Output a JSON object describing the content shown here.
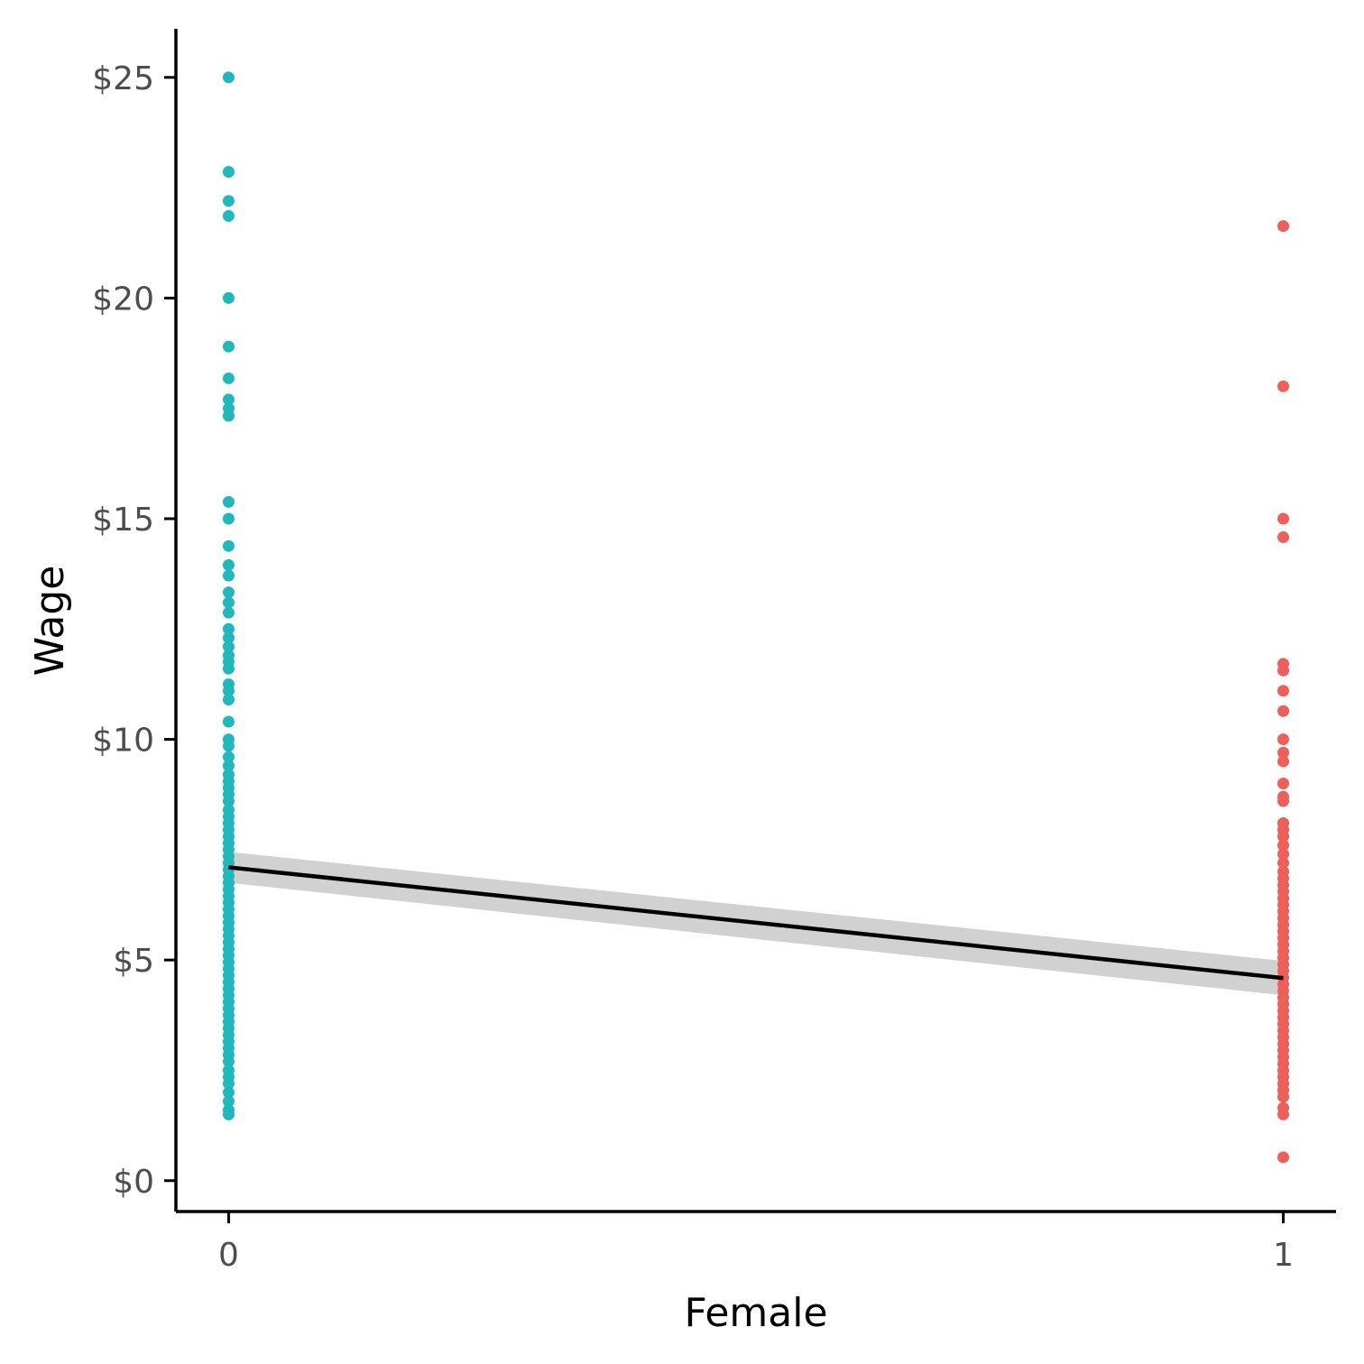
{
  "chart_data": {
    "type": "scatter",
    "title": "",
    "xlabel": "Female",
    "ylabel": "Wage",
    "xlim": [
      -0.05,
      1.05
    ],
    "ylim": [
      -0.7,
      26.1
    ],
    "x_ticks": [
      {
        "value": 0,
        "label": "0"
      },
      {
        "value": 1,
        "label": "1"
      }
    ],
    "y_ticks": [
      {
        "value": 0,
        "label": "$0"
      },
      {
        "value": 5,
        "label": "$5"
      },
      {
        "value": 10,
        "label": "$10"
      },
      {
        "value": 15,
        "label": "$15"
      },
      {
        "value": 20,
        "label": "$20"
      },
      {
        "value": 25,
        "label": "$25"
      }
    ],
    "grid": false,
    "legend": "none",
    "colors": {
      "group0": "#1fb8bc",
      "group1": "#ef5f5a",
      "fit": "#000000",
      "band": "#cccccc"
    },
    "series": [
      {
        "x": 0,
        "values": [
          25.0,
          22.86,
          22.2,
          21.86,
          20.0,
          18.9,
          18.18,
          17.7,
          17.5,
          17.33,
          15.38,
          15.0,
          14.38,
          13.95,
          13.71,
          13.33,
          13.1,
          12.87,
          12.5,
          12.3,
          12.1,
          11.9,
          11.76,
          11.6,
          11.25,
          11.1,
          10.9,
          10.4,
          10.0,
          9.85,
          9.6,
          9.4,
          9.2,
          9.05,
          8.9,
          8.75,
          8.6,
          8.4,
          8.25,
          8.1,
          7.95,
          7.8,
          7.65,
          7.5,
          7.35,
          7.2,
          7.05,
          6.9,
          6.75,
          6.6,
          6.45,
          6.3,
          6.15,
          6.0,
          5.85,
          5.7,
          5.55,
          5.4,
          5.25,
          5.1,
          4.95,
          4.8,
          4.65,
          4.5,
          4.35,
          4.2,
          4.05,
          3.9,
          3.75,
          3.6,
          3.45,
          3.3,
          3.15,
          3.0,
          2.85,
          2.7,
          2.5,
          2.35,
          2.2,
          2.0,
          1.8,
          1.6,
          1.5
        ]
      },
      {
        "x": 1,
        "values": [
          21.63,
          18.0,
          15.0,
          14.58,
          11.71,
          11.56,
          11.1,
          10.64,
          10.0,
          9.7,
          9.5,
          9.0,
          8.7,
          8.6,
          8.1,
          7.95,
          7.8,
          7.6,
          7.4,
          7.2,
          7.0,
          6.85,
          6.7,
          6.55,
          6.4,
          6.25,
          6.1,
          5.95,
          5.8,
          5.65,
          5.5,
          5.35,
          5.2,
          5.05,
          4.9,
          4.75,
          4.6,
          4.45,
          4.3,
          4.15,
          4.0,
          3.85,
          3.7,
          3.55,
          3.4,
          3.25,
          3.1,
          2.95,
          2.8,
          2.65,
          2.5,
          2.35,
          2.2,
          2.05,
          1.9,
          1.65,
          1.5,
          0.53
        ]
      }
    ],
    "fit": {
      "x": [
        0,
        1
      ],
      "y": [
        7.1,
        4.59
      ],
      "ci_lower": [
        6.75,
        4.2
      ],
      "ci_upper": [
        7.45,
        4.98
      ]
    }
  }
}
